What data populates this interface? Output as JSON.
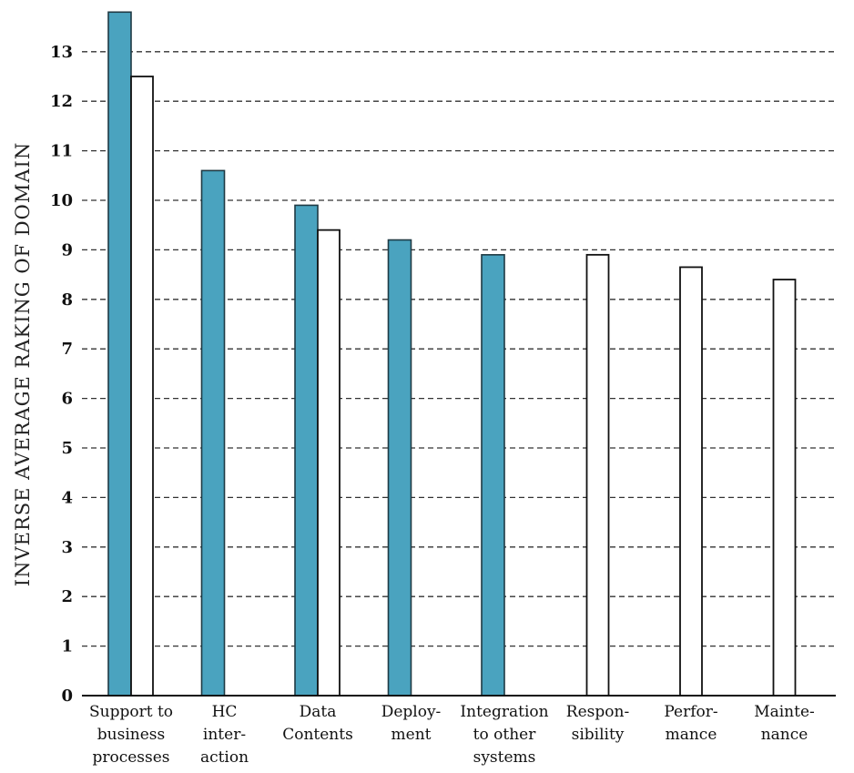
{
  "colors": {
    "series_a": "#4aa3bf",
    "series_b": "#ffffff"
  },
  "chart_data": {
    "type": "bar",
    "ylabel": "INVERSE AVERAGE RAKING OF DOMAIN",
    "ylim": [
      0,
      13.8
    ],
    "yticks": [
      0,
      1,
      2,
      3,
      4,
      5,
      6,
      7,
      8,
      9,
      10,
      11,
      12,
      13
    ],
    "grid": true,
    "categories": [
      [
        "Support to",
        "business",
        "processes"
      ],
      [
        "HC",
        "inter-",
        "action"
      ],
      [
        "Data",
        "Contents"
      ],
      [
        "Deploy-",
        "ment"
      ],
      [
        "Integration",
        "to other",
        "systems"
      ],
      [
        "Respon-",
        "sibility"
      ],
      [
        "Perfor-",
        "mance"
      ],
      [
        "Mainte-",
        "nance"
      ]
    ],
    "series": [
      {
        "values": [
          13.8,
          10.6,
          9.9,
          9.2,
          8.9,
          null,
          null,
          null
        ]
      },
      {
        "values": [
          12.5,
          null,
          9.4,
          null,
          null,
          8.9,
          8.65,
          8.4
        ]
      }
    ]
  }
}
